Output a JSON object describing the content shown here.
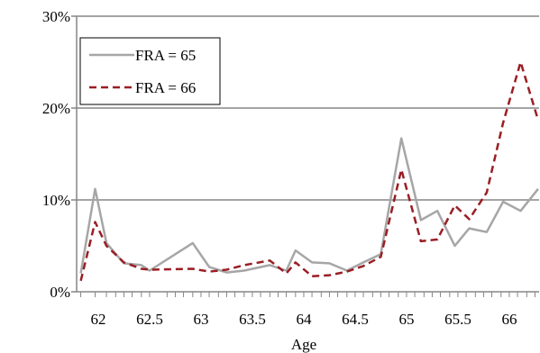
{
  "chart_data": {
    "type": "line",
    "title": "",
    "xlabel": "Age",
    "ylabel": "",
    "xlim": [
      61.79,
      66.29
    ],
    "ylim": [
      0,
      30
    ],
    "yticks": [
      0,
      10,
      20,
      30
    ],
    "ytick_labels": [
      "0%",
      "10%",
      "20%",
      "30%"
    ],
    "xticks": [
      62,
      62.5,
      63,
      63.5,
      64,
      64.5,
      65,
      65.5,
      66
    ],
    "xtick_labels": [
      "62",
      "62.5",
      "63",
      "63.5",
      "64",
      "64.5",
      "65",
      "65.5",
      "66"
    ],
    "grid": "horizontal",
    "legend_position": "top-left",
    "x": [
      61.83,
      61.97,
      62.08,
      62.17,
      62.25,
      62.33,
      62.42,
      62.5,
      62.67,
      62.75,
      62.83,
      62.92,
      63.0,
      63.08,
      63.17,
      63.25,
      63.33,
      63.42,
      63.5,
      63.58,
      63.67,
      63.75,
      63.83,
      63.92,
      64.0,
      64.08,
      64.17,
      64.25,
      64.33,
      64.42,
      64.5,
      64.58,
      64.67,
      64.75,
      64.83,
      64.92,
      65.0,
      65.08,
      65.17,
      65.25,
      65.33,
      65.42,
      65.5,
      65.58,
      65.67,
      65.75,
      65.83,
      65.92,
      66.0,
      66.08,
      66.17,
      66.25
    ],
    "series": [
      {
        "name": "FRA = 65",
        "color": "#a6a6a6",
        "dash": "solid",
        "points": [
          [
            61.83,
            2.0
          ],
          [
            61.97,
            11.2
          ],
          [
            62.08,
            5.3
          ],
          [
            62.25,
            3.1
          ],
          [
            62.42,
            2.9
          ],
          [
            62.5,
            2.3
          ],
          [
            62.92,
            5.3
          ],
          [
            63.08,
            2.7
          ],
          [
            63.25,
            2.1
          ],
          [
            63.42,
            2.3
          ],
          [
            63.67,
            2.9
          ],
          [
            63.83,
            2.3
          ],
          [
            63.92,
            4.5
          ],
          [
            64.08,
            3.2
          ],
          [
            64.25,
            3.1
          ],
          [
            64.42,
            2.3
          ],
          [
            64.58,
            3.2
          ],
          [
            64.75,
            4.1
          ],
          [
            64.95,
            16.7
          ],
          [
            65.14,
            7.8
          ],
          [
            65.3,
            8.8
          ],
          [
            65.47,
            5.0
          ],
          [
            65.61,
            6.9
          ],
          [
            65.78,
            6.5
          ],
          [
            65.94,
            9.8
          ],
          [
            66.11,
            8.8
          ],
          [
            66.28,
            11.2
          ]
        ]
      },
      {
        "name": "FRA = 66",
        "color": "#9a1e24",
        "dash": "dashed",
        "points": [
          [
            61.83,
            1.2
          ],
          [
            61.97,
            7.6
          ],
          [
            62.08,
            5.0
          ],
          [
            62.25,
            3.2
          ],
          [
            62.42,
            2.5
          ],
          [
            62.5,
            2.4
          ],
          [
            62.92,
            2.5
          ],
          [
            63.08,
            2.2
          ],
          [
            63.25,
            2.4
          ],
          [
            63.42,
            2.9
          ],
          [
            63.67,
            3.4
          ],
          [
            63.83,
            2.0
          ],
          [
            63.92,
            3.2
          ],
          [
            64.08,
            1.7
          ],
          [
            64.25,
            1.8
          ],
          [
            64.42,
            2.2
          ],
          [
            64.58,
            2.8
          ],
          [
            64.75,
            3.8
          ],
          [
            64.95,
            13.3
          ],
          [
            65.14,
            5.5
          ],
          [
            65.3,
            5.7
          ],
          [
            65.47,
            9.4
          ],
          [
            65.61,
            7.9
          ],
          [
            65.78,
            10.8
          ],
          [
            65.94,
            18.4
          ],
          [
            66.11,
            25.0
          ],
          [
            66.28,
            18.7
          ]
        ]
      }
    ],
    "axis_color": "#868686",
    "grid_color": "#868686"
  }
}
